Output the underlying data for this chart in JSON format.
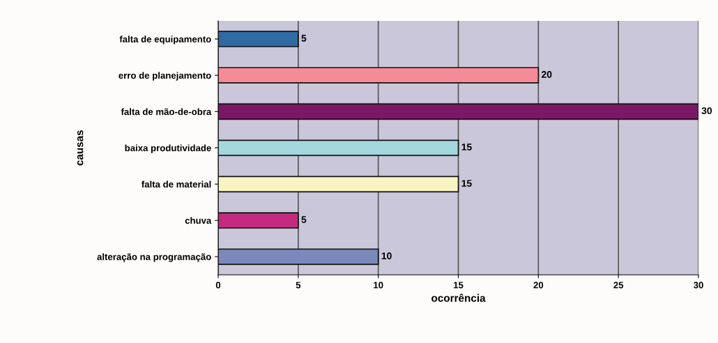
{
  "chart_data": {
    "type": "bar",
    "orientation": "horizontal",
    "xlabel": "ocorrência",
    "ylabel": "causas",
    "categories": [
      "falta de equipamento",
      "erro de planejamento",
      "falta de mão-de-obra",
      "baixa produtividade",
      "falta de material",
      "chuva",
      "alteração na programação"
    ],
    "values": [
      5,
      20,
      30,
      15,
      15,
      5,
      10
    ],
    "colors": [
      "#2f6aa3",
      "#f68b98",
      "#7c1768",
      "#a3d8de",
      "#f8f5c2",
      "#c42b7f",
      "#7b88ba"
    ],
    "xlim": [
      0,
      30
    ],
    "xticks": [
      0,
      5,
      10,
      15,
      20,
      25,
      30
    ],
    "grid": "x",
    "data_labels": true
  }
}
